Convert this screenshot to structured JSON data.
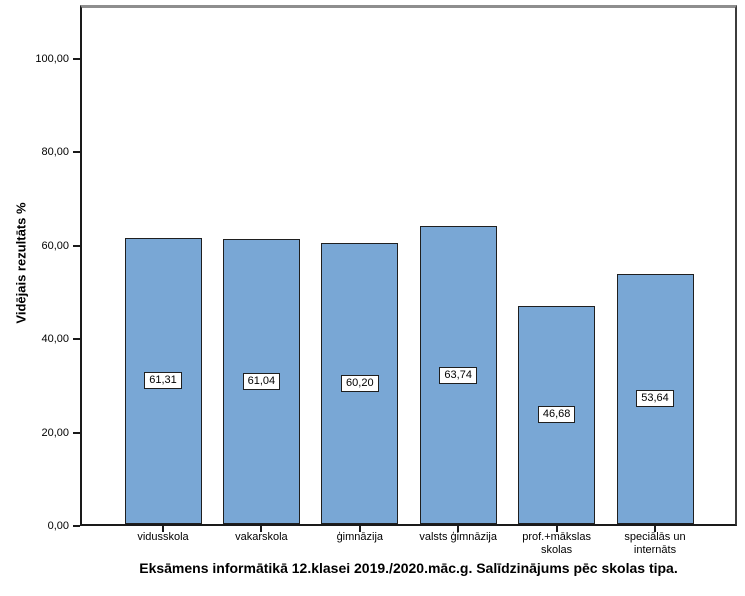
{
  "chart_data": {
    "type": "bar",
    "title": "Eksāmens informātikā 12.klasei 2019./2020.māc.g. Salīdzinājums pēc skolas tipa.",
    "ylabel": "Vidējais rezultāts %",
    "xlabel": "",
    "categories": [
      "vidusskola",
      "vakarskola",
      "ģimnāzija",
      "valsts ģimnāzija",
      "prof.+mākslas\nskolas",
      "speciālās un\ninternāts"
    ],
    "values": [
      61.31,
      61.04,
      60.2,
      63.74,
      46.68,
      53.64
    ],
    "value_labels": [
      "61,31",
      "61,04",
      "60,20",
      "63,74",
      "46,68",
      "53,64"
    ],
    "yticks": [
      0,
      20,
      40,
      60,
      80,
      100
    ],
    "ytick_labels": [
      "0,00",
      "20,00",
      "40,00",
      "60,00",
      "80,00",
      "100,00"
    ],
    "ylim": [
      0,
      111.6
    ],
    "grid": false,
    "legend": "none",
    "bar_fill": "#79A7D5",
    "bar_border": "#1f1f1f",
    "value_label_bg": "#ffffff",
    "value_label_border": "#1f1f1f",
    "frame_top_color": "#8e8e8e",
    "axis_color": "#1a1a1a"
  }
}
